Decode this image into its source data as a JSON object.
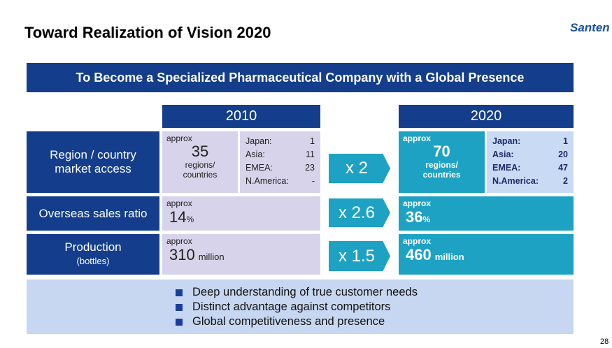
{
  "header": {
    "title": "Toward Realization of Vision 2020",
    "logo": "Santen"
  },
  "banner": "To Become a Specialized Pharmaceutical Company with a Global Presence",
  "columns": [
    "2010",
    "2020"
  ],
  "rows": [
    {
      "label": "Region / country market access",
      "before": {
        "prefix": "approx",
        "value": "35",
        "unit": "regions/ countries",
        "breakdown": [
          {
            "name": "Japan:",
            "value": "1"
          },
          {
            "name": "Asia:",
            "value": "11"
          },
          {
            "name": "EMEA:",
            "value": "23"
          },
          {
            "name": "N.America:",
            "value": "-"
          }
        ]
      },
      "multiplier": "x 2",
      "after": {
        "prefix": "approx",
        "value": "70",
        "unit": "regions/ countries",
        "breakdown": [
          {
            "name": "Japan:",
            "value": "1"
          },
          {
            "name": "Asia:",
            "value": "20"
          },
          {
            "name": "EMEA:",
            "value": "47"
          },
          {
            "name": "N.America:",
            "value": "2"
          }
        ]
      }
    },
    {
      "label": "Overseas sales ratio",
      "before": {
        "prefix": "approx",
        "value": "14",
        "unit": "%"
      },
      "multiplier": "x 2.6",
      "after": {
        "prefix": "approx",
        "value": "36",
        "unit": "%"
      }
    },
    {
      "label": "Production",
      "sublabel": "(bottles)",
      "before": {
        "prefix": "approx",
        "value": "310",
        "unit": "million"
      },
      "multiplier": "x 1.5",
      "after": {
        "prefix": "approx",
        "value": "460",
        "unit": "million"
      }
    }
  ],
  "bullets": [
    "Deep understanding of true customer needs",
    "Distinct advantage against competitors",
    "Global competitiveness and presence"
  ],
  "page_number": "28"
}
